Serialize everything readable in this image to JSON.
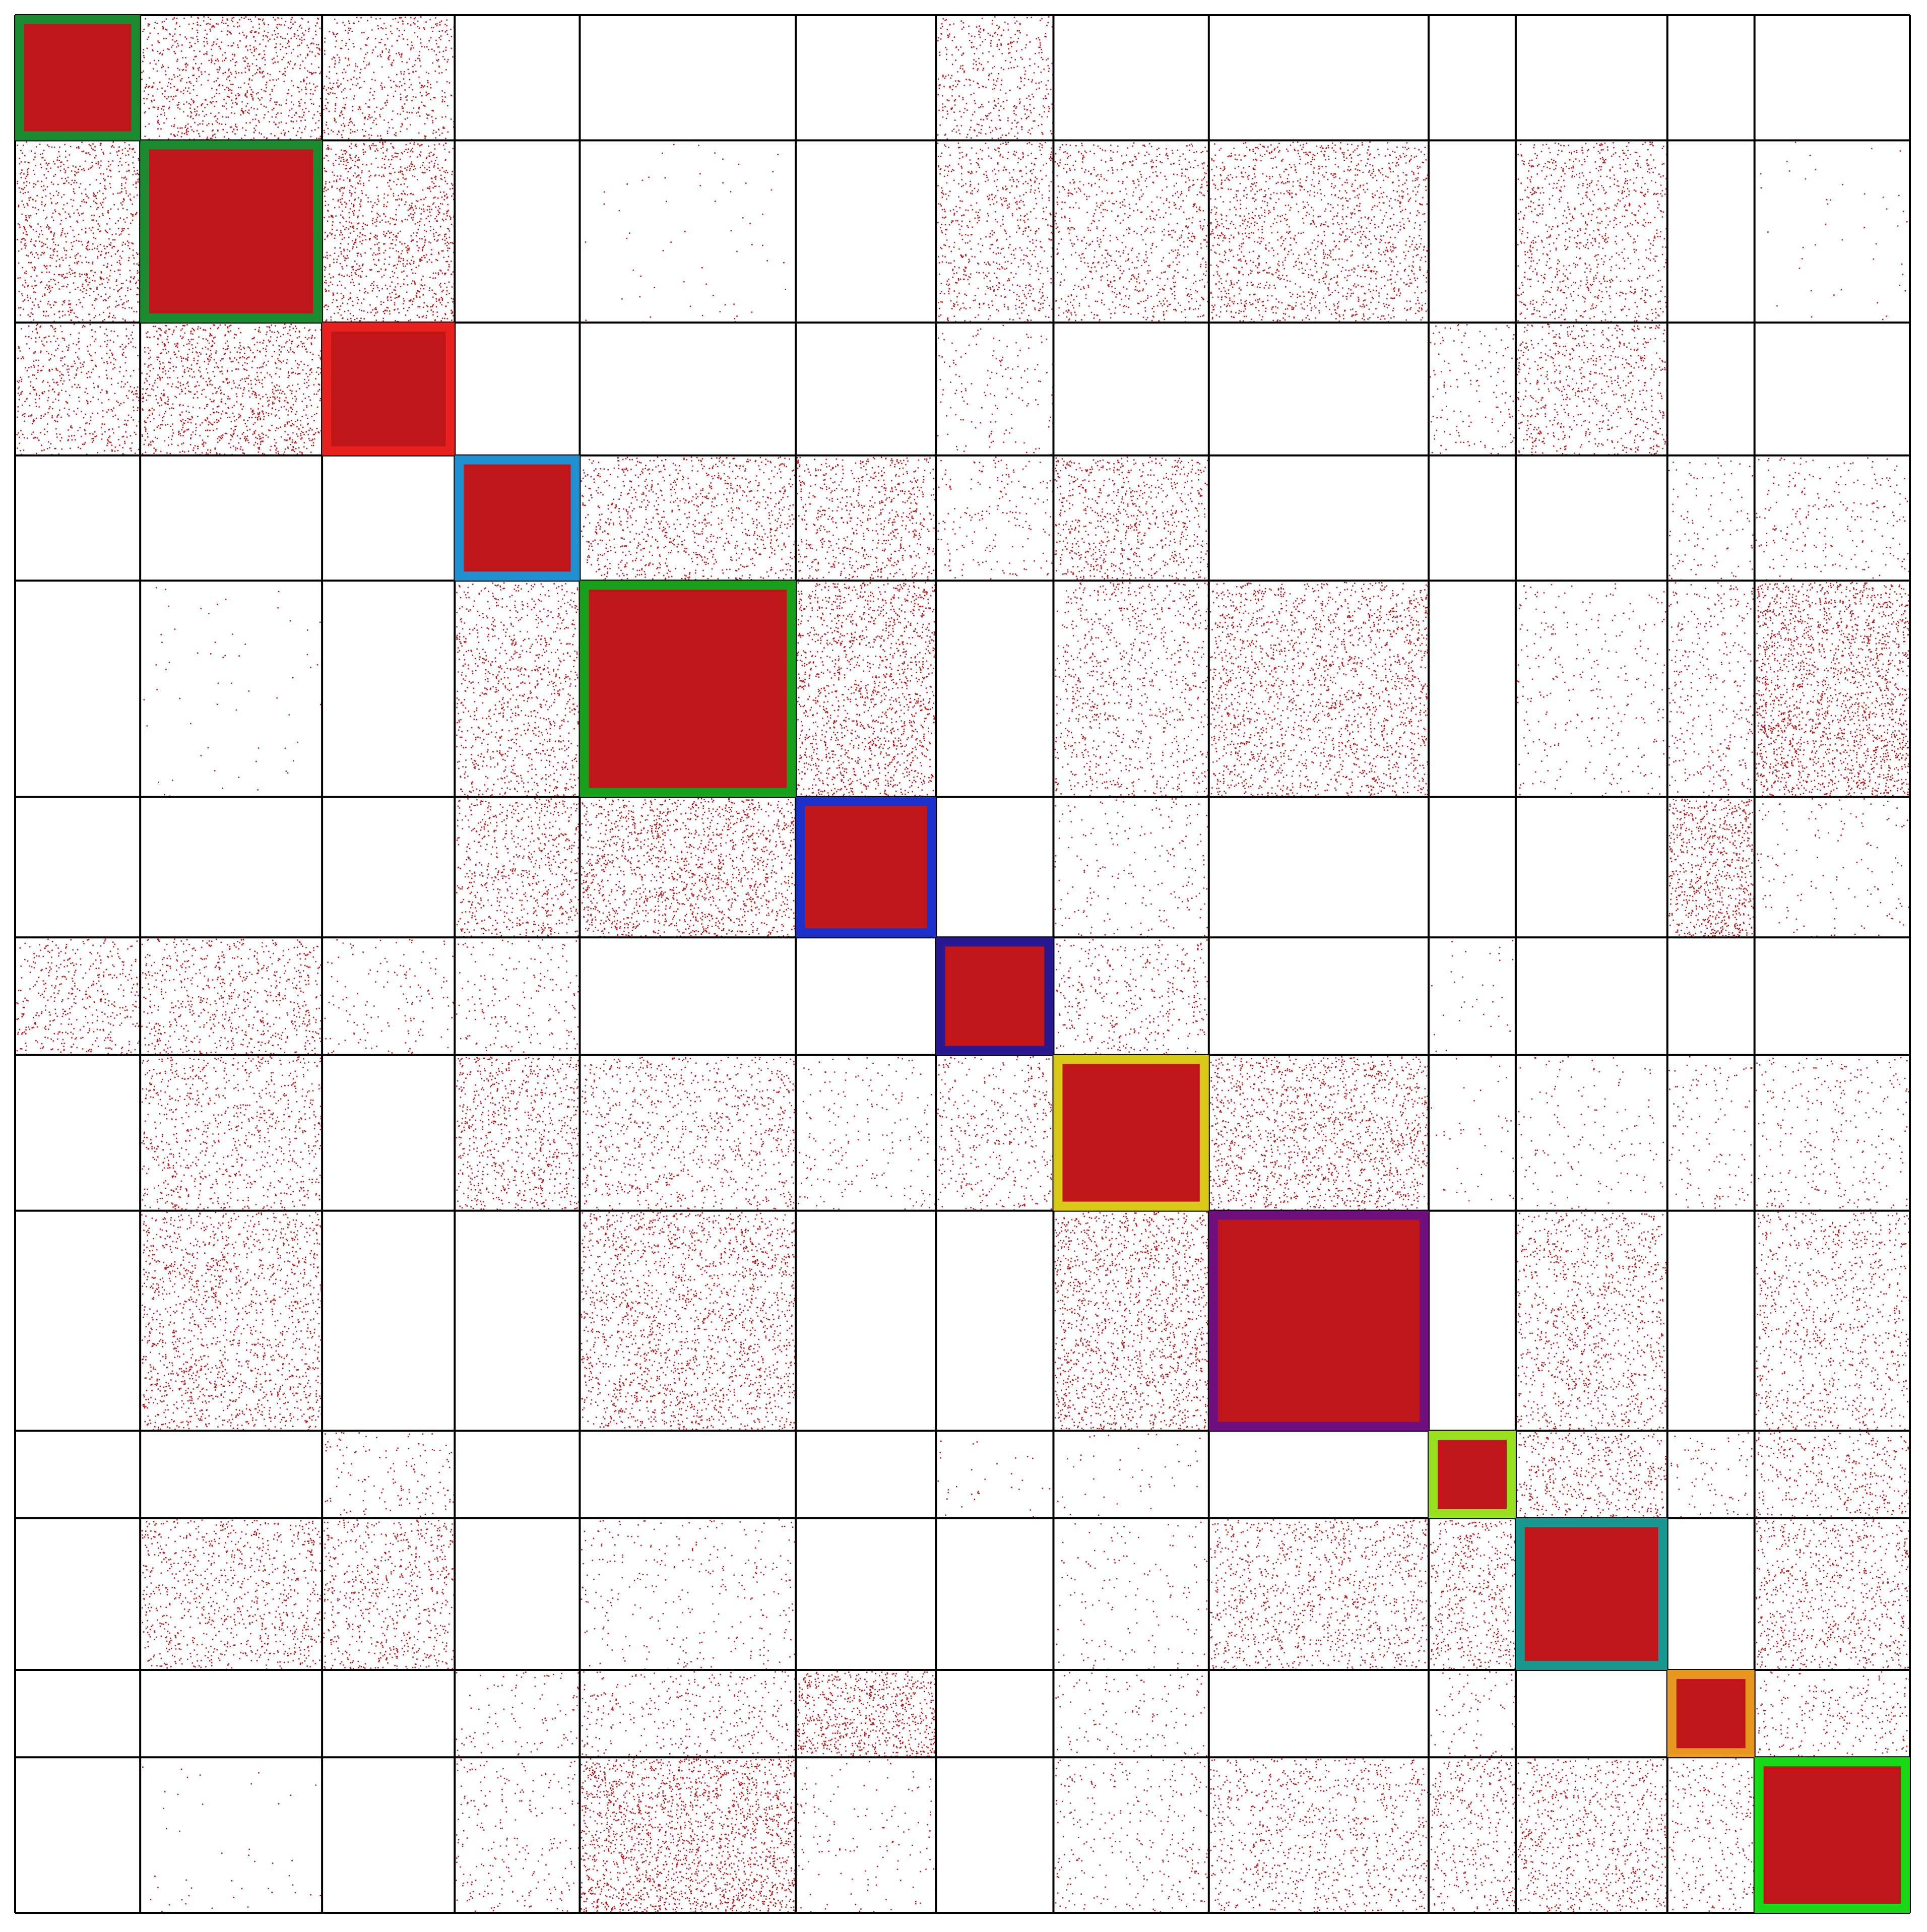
{
  "chart_data": {
    "type": "heatmap",
    "title": "",
    "xlabel": "",
    "ylabel": "",
    "grid": true,
    "legend": "none",
    "n_nodes": 1000,
    "blocks": [
      {
        "id": 1,
        "size": 66,
        "frame_color": "#1a8a2e"
      },
      {
        "id": 2,
        "size": 96,
        "frame_color": "#1a8a2e"
      },
      {
        "id": 3,
        "size": 70,
        "frame_color": "#e8201e"
      },
      {
        "id": 4,
        "size": 66,
        "frame_color": "#1e90d0"
      },
      {
        "id": 5,
        "size": 114,
        "frame_color": "#16a01c"
      },
      {
        "id": 6,
        "size": 74,
        "frame_color": "#1a30c8"
      },
      {
        "id": 7,
        "size": 62,
        "frame_color": "#2a1890"
      },
      {
        "id": 8,
        "size": 82,
        "frame_color": "#d8c818"
      },
      {
        "id": 9,
        "size": 116,
        "frame_color": "#701080"
      },
      {
        "id": 10,
        "size": 46,
        "frame_color": "#98e020"
      },
      {
        "id": 11,
        "size": 80,
        "frame_color": "#189890"
      },
      {
        "id": 12,
        "size": 46,
        "frame_color": "#e89820"
      },
      {
        "id": 13,
        "size": 82,
        "frame_color": "#18d818"
      }
    ],
    "link_density": [
      [
        1.0,
        0.28,
        0.22,
        0.0,
        0.0,
        0.0,
        0.2,
        0.0,
        0.0,
        0.0,
        0.0,
        0.0,
        0.0
      ],
      [
        0.28,
        1.0,
        0.32,
        0.0,
        0.01,
        0.0,
        0.22,
        0.2,
        0.26,
        0.0,
        0.22,
        0.0,
        0.01
      ],
      [
        0.22,
        0.32,
        1.0,
        0.0,
        0.0,
        0.0,
        0.06,
        0.0,
        0.0,
        0.08,
        0.22,
        0.0,
        0.0
      ],
      [
        0.0,
        0.0,
        0.0,
        1.0,
        0.24,
        0.26,
        0.08,
        0.26,
        0.0,
        0.0,
        0.0,
        0.06,
        0.08
      ],
      [
        0.0,
        0.01,
        0.0,
        0.24,
        1.0,
        0.34,
        0.0,
        0.18,
        0.28,
        0.0,
        0.06,
        0.12,
        0.4
      ],
      [
        0.0,
        0.0,
        0.0,
        0.26,
        0.34,
        1.0,
        0.0,
        0.06,
        0.0,
        0.0,
        0.0,
        0.4,
        0.04
      ],
      [
        0.2,
        0.22,
        0.06,
        0.08,
        0.0,
        0.0,
        1.0,
        0.14,
        0.0,
        0.02,
        0.0,
        0.0,
        0.0
      ],
      [
        0.0,
        0.2,
        0.0,
        0.26,
        0.18,
        0.06,
        0.14,
        1.0,
        0.3,
        0.02,
        0.04,
        0.06,
        0.08
      ],
      [
        0.0,
        0.26,
        0.0,
        0.0,
        0.28,
        0.0,
        0.0,
        0.3,
        1.0,
        0.0,
        0.22,
        0.0,
        0.18
      ],
      [
        0.0,
        0.0,
        0.08,
        0.0,
        0.0,
        0.0,
        0.02,
        0.02,
        0.0,
        1.0,
        0.24,
        0.06,
        0.18
      ],
      [
        0.0,
        0.22,
        0.22,
        0.0,
        0.06,
        0.0,
        0.0,
        0.04,
        0.22,
        0.24,
        1.0,
        0.0,
        0.22
      ],
      [
        0.0,
        0.0,
        0.0,
        0.06,
        0.12,
        0.4,
        0.0,
        0.06,
        0.0,
        0.06,
        0.0,
        1.0,
        0.12
      ],
      [
        0.0,
        0.01,
        0.0,
        0.08,
        0.4,
        0.04,
        0.0,
        0.08,
        0.18,
        0.18,
        0.22,
        0.12,
        1.0
      ]
    ],
    "colors": {
      "link": "#c0161a",
      "grid": "#000000",
      "background": "#ffffff"
    }
  }
}
